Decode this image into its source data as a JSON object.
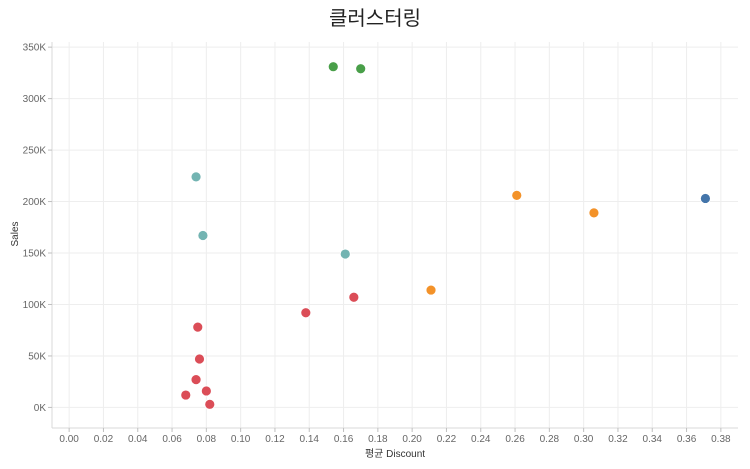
{
  "chart_data": {
    "type": "scatter",
    "title": "클러스터링",
    "xlabel": "평균 Discount",
    "ylabel": "Sales",
    "xlim": [
      -0.01,
      0.39
    ],
    "ylim": [
      -20000,
      355000
    ],
    "x_ticks": [
      0.0,
      0.02,
      0.04,
      0.06,
      0.08,
      0.1,
      0.12,
      0.14,
      0.16,
      0.18,
      0.2,
      0.22,
      0.24,
      0.26,
      0.28,
      0.3,
      0.32,
      0.34,
      0.36,
      0.38
    ],
    "x_tick_labels": [
      "0.00",
      "0.02",
      "0.04",
      "0.06",
      "0.08",
      "0.10",
      "0.12",
      "0.14",
      "0.16",
      "0.18",
      "0.20",
      "0.22",
      "0.24",
      "0.26",
      "0.28",
      "0.30",
      "0.32",
      "0.34",
      "0.36",
      "0.38"
    ],
    "y_ticks": [
      0,
      50000,
      100000,
      150000,
      200000,
      250000,
      300000,
      350000
    ],
    "y_tick_labels": [
      "0K",
      "50K",
      "100K",
      "150K",
      "200K",
      "250K",
      "300K",
      "350K"
    ],
    "grid": true,
    "legend": "none",
    "series": [
      {
        "color": "#d9434e",
        "points": [
          {
            "x": 0.068,
            "y": 12000
          },
          {
            "x": 0.074,
            "y": 27000
          },
          {
            "x": 0.075,
            "y": 78000
          },
          {
            "x": 0.076,
            "y": 47000
          },
          {
            "x": 0.08,
            "y": 16000
          },
          {
            "x": 0.082,
            "y": 3000
          },
          {
            "x": 0.138,
            "y": 92000
          },
          {
            "x": 0.166,
            "y": 107000
          }
        ]
      },
      {
        "color": "#6cb0ae",
        "points": [
          {
            "x": 0.074,
            "y": 224000
          },
          {
            "x": 0.078,
            "y": 167000
          },
          {
            "x": 0.161,
            "y": 149000
          }
        ]
      },
      {
        "color": "#3f9a3f",
        "points": [
          {
            "x": 0.154,
            "y": 331000
          },
          {
            "x": 0.17,
            "y": 329000
          }
        ]
      },
      {
        "color": "#f28c1e",
        "points": [
          {
            "x": 0.211,
            "y": 114000
          },
          {
            "x": 0.261,
            "y": 206000
          },
          {
            "x": 0.306,
            "y": 189000
          }
        ]
      },
      {
        "color": "#3a6ea5",
        "points": [
          {
            "x": 0.371,
            "y": 203000
          }
        ]
      }
    ]
  }
}
